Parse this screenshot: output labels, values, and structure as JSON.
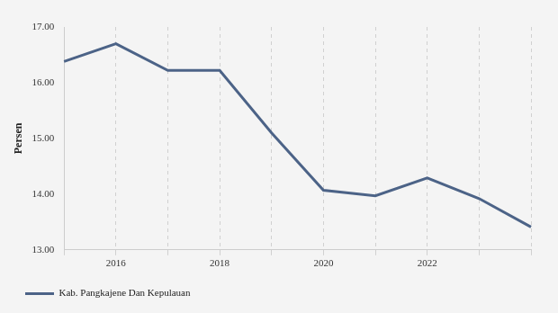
{
  "chart_data": {
    "type": "line",
    "y_label": "Persen",
    "categories": [
      null,
      "2016",
      null,
      "2018",
      null,
      "2020",
      null,
      "2022",
      null,
      null
    ],
    "series": [
      {
        "name": "Kab. Pangkajene Dan Kepulauan",
        "color": "#4c6387",
        "values": [
          16.38,
          16.7,
          16.22,
          16.22,
          15.1,
          14.07,
          13.97,
          14.29,
          13.92,
          13.41
        ]
      }
    ],
    "ylim": [
      13,
      17
    ],
    "yticks": [
      {
        "value": 13,
        "label": "13.00"
      },
      {
        "value": 14,
        "label": "14.00"
      },
      {
        "value": 15,
        "label": "15.00"
      },
      {
        "value": 16,
        "label": "16.00"
      },
      {
        "value": 17,
        "label": "17.00"
      }
    ],
    "grid": "x",
    "legend": "bottom-left"
  }
}
